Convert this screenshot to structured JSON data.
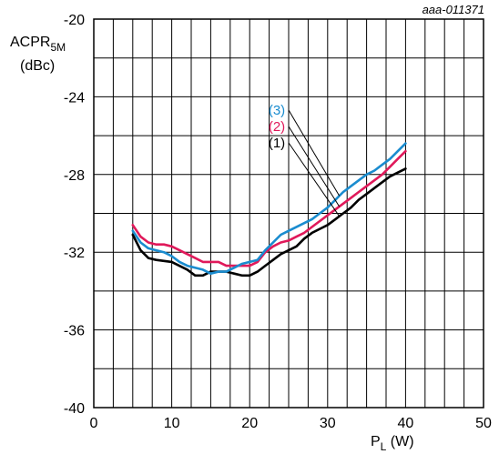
{
  "chart_data": {
    "type": "line",
    "figure_code": "aaa-011371",
    "ylabel": {
      "main": "ACPR",
      "sub": "5M",
      "unit": "(dBc)"
    },
    "xlabel": {
      "main": "P",
      "sub": "L",
      "unit": " (W)"
    },
    "xlim": [
      0,
      50
    ],
    "ylim": [
      -40,
      -20
    ],
    "xticks": [
      0,
      10,
      20,
      30,
      40,
      50
    ],
    "xtick_labels": [
      "0",
      "10",
      "20",
      "30",
      "40",
      "50"
    ],
    "yticks": [
      -20,
      -24,
      -28,
      -32,
      -36,
      -40
    ],
    "ytick_labels": [
      "-20",
      "-24",
      "-28",
      "-32",
      "-36",
      "-40"
    ],
    "x_minor_step": 2.5,
    "y_minor_step": 2,
    "grid": true,
    "series": [
      {
        "name": "(1)",
        "color": "#000000",
        "points": [
          [
            5,
            -31.1
          ],
          [
            6,
            -31.9
          ],
          [
            7,
            -32.3
          ],
          [
            8,
            -32.4
          ],
          [
            10,
            -32.5
          ],
          [
            12,
            -32.9
          ],
          [
            13,
            -33.2
          ],
          [
            14,
            -33.2
          ],
          [
            15,
            -33.0
          ],
          [
            16,
            -33.0
          ],
          [
            17,
            -33.0
          ],
          [
            18,
            -33.1
          ],
          [
            19,
            -33.2
          ],
          [
            20,
            -33.2
          ],
          [
            21,
            -33.0
          ],
          [
            22,
            -32.7
          ],
          [
            23,
            -32.4
          ],
          [
            24,
            -32.1
          ],
          [
            25,
            -31.9
          ],
          [
            26,
            -31.7
          ],
          [
            27,
            -31.3
          ],
          [
            28,
            -31.0
          ],
          [
            29,
            -30.8
          ],
          [
            30,
            -30.6
          ],
          [
            31,
            -30.3
          ],
          [
            32,
            -30.0
          ],
          [
            33,
            -29.7
          ],
          [
            34,
            -29.3
          ],
          [
            35,
            -29.0
          ],
          [
            36,
            -28.7
          ],
          [
            37,
            -28.4
          ],
          [
            38,
            -28.1
          ],
          [
            39,
            -27.9
          ],
          [
            40,
            -27.7
          ]
        ]
      },
      {
        "name": "(2)",
        "color": "#e0195a",
        "points": [
          [
            5,
            -30.6
          ],
          [
            6,
            -31.2
          ],
          [
            7,
            -31.5
          ],
          [
            8,
            -31.6
          ],
          [
            9,
            -31.6
          ],
          [
            10,
            -31.7
          ],
          [
            11,
            -31.9
          ],
          [
            12,
            -32.1
          ],
          [
            13,
            -32.3
          ],
          [
            14,
            -32.5
          ],
          [
            15,
            -32.5
          ],
          [
            16,
            -32.5
          ],
          [
            17,
            -32.7
          ],
          [
            18,
            -32.7
          ],
          [
            19,
            -32.7
          ],
          [
            20,
            -32.7
          ],
          [
            21,
            -32.5
          ],
          [
            22,
            -32.0
          ],
          [
            23,
            -31.7
          ],
          [
            24,
            -31.5
          ],
          [
            25,
            -31.4
          ],
          [
            26,
            -31.2
          ],
          [
            27,
            -31.0
          ],
          [
            28,
            -30.7
          ],
          [
            29,
            -30.4
          ],
          [
            30,
            -30.1
          ],
          [
            31,
            -29.8
          ],
          [
            32,
            -29.5
          ],
          [
            33,
            -29.2
          ],
          [
            34,
            -28.9
          ],
          [
            35,
            -28.6
          ],
          [
            36,
            -28.3
          ],
          [
            37,
            -28.0
          ],
          [
            38,
            -27.6
          ],
          [
            39,
            -27.2
          ],
          [
            40,
            -26.8
          ]
        ]
      },
      {
        "name": "(3)",
        "color": "#1a8ccf",
        "points": [
          [
            5,
            -30.9
          ],
          [
            6,
            -31.5
          ],
          [
            7,
            -31.8
          ],
          [
            8,
            -31.9
          ],
          [
            9,
            -32.0
          ],
          [
            10,
            -32.2
          ],
          [
            11,
            -32.5
          ],
          [
            12,
            -32.7
          ],
          [
            13,
            -32.8
          ],
          [
            14,
            -32.9
          ],
          [
            15,
            -33.1
          ],
          [
            16,
            -33.0
          ],
          [
            17,
            -33.0
          ],
          [
            18,
            -32.8
          ],
          [
            19,
            -32.6
          ],
          [
            20,
            -32.5
          ],
          [
            21,
            -32.4
          ],
          [
            22,
            -31.9
          ],
          [
            23,
            -31.5
          ],
          [
            24,
            -31.1
          ],
          [
            25,
            -30.9
          ],
          [
            26,
            -30.7
          ],
          [
            27,
            -30.5
          ],
          [
            28,
            -30.3
          ],
          [
            29,
            -30.0
          ],
          [
            30,
            -29.7
          ],
          [
            31,
            -29.3
          ],
          [
            32,
            -28.9
          ],
          [
            33,
            -28.6
          ],
          [
            34,
            -28.3
          ],
          [
            35,
            -28.0
          ],
          [
            36,
            -27.8
          ],
          [
            37,
            -27.5
          ],
          [
            38,
            -27.2
          ],
          [
            39,
            -26.8
          ],
          [
            40,
            -26.4
          ]
        ]
      }
    ],
    "annotations": [
      {
        "text": "(3)",
        "series": 2,
        "color": "#1a8ccf",
        "point_x": 31.5
      },
      {
        "text": "(2)",
        "series": 1,
        "color": "#e0195a",
        "point_x": 31.5
      },
      {
        "text": "(1)",
        "series": 0,
        "color": "#000000",
        "point_x": 31.5
      }
    ]
  }
}
